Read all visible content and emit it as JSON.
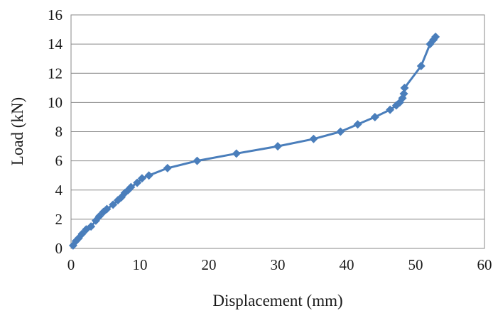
{
  "chart_data": {
    "type": "line",
    "title": "",
    "xlabel": "Displacement (mm)",
    "ylabel": "Load (kN)",
    "xlim": [
      0,
      60
    ],
    "ylim": [
      0,
      16
    ],
    "xticks": [
      0,
      10,
      20,
      30,
      40,
      50,
      60
    ],
    "yticks": [
      0,
      2,
      4,
      6,
      8,
      10,
      12,
      14,
      16
    ],
    "grid": "horizontal",
    "legend": "none",
    "series": [
      {
        "color": "#4A7EBB",
        "marker": "diamond",
        "x": [
          0.3,
          0.7,
          1.1,
          1.6,
          2.2,
          2.9,
          3.6,
          4.1,
          4.7,
          5.2,
          6.1,
          6.8,
          7.3,
          7.8,
          8.3,
          8.7,
          9.6,
          10.3,
          11.3,
          14.0,
          18.3,
          24.0,
          30.0,
          35.2,
          39.1,
          41.6,
          44.1,
          46.3,
          47.2,
          47.7,
          48.1,
          48.3,
          48.4,
          50.8,
          52.1,
          52.6,
          52.9
        ],
        "y": [
          0.2,
          0.5,
          0.7,
          1.0,
          1.3,
          1.5,
          1.9,
          2.2,
          2.5,
          2.7,
          3.0,
          3.3,
          3.5,
          3.8,
          4.0,
          4.2,
          4.5,
          4.8,
          5.0,
          5.5,
          6.0,
          6.5,
          7.0,
          7.5,
          8.0,
          8.5,
          9.0,
          9.5,
          9.8,
          10.0,
          10.3,
          10.6,
          11.0,
          12.5,
          14.0,
          14.3,
          14.5
        ]
      }
    ]
  }
}
